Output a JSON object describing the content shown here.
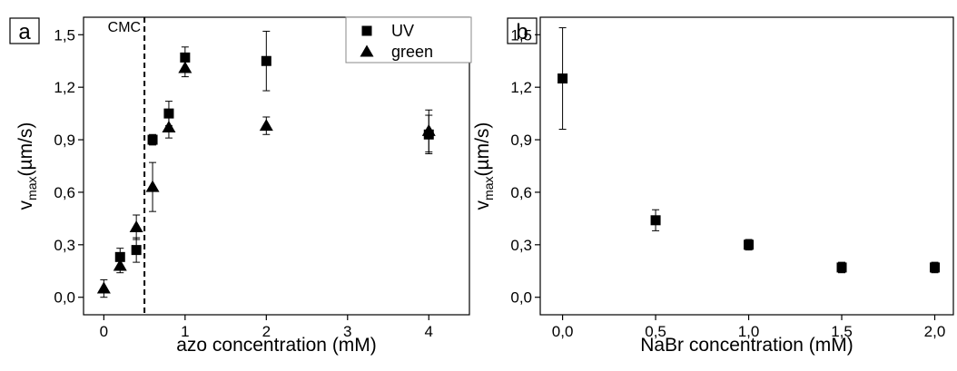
{
  "chart_data": [
    {
      "type": "scatter",
      "panel": "a",
      "xlabel": "azo concentration (mM)",
      "ylabel_main": "v",
      "ylabel_sub": "max",
      "ylabel_rest": "(µm/s)",
      "xlim": [
        -0.25,
        4.5
      ],
      "ylim": [
        -0.1,
        1.6
      ],
      "xticks": [
        {
          "v": 0,
          "label": "0"
        },
        {
          "v": 1,
          "label": "1"
        },
        {
          "v": 2,
          "label": "2"
        },
        {
          "v": 3,
          "label": "3"
        },
        {
          "v": 4,
          "label": "4"
        }
      ],
      "yticks": [
        {
          "v": 0,
          "label": "0,0"
        },
        {
          "v": 0.3,
          "label": "0,3"
        },
        {
          "v": 0.6,
          "label": "0,6"
        },
        {
          "v": 0.9,
          "label": "0,9"
        },
        {
          "v": 1.2,
          "label": "1,2"
        },
        {
          "v": 1.5,
          "label": "1,5"
        }
      ],
      "vline": {
        "x": 0.5,
        "label": "CMC"
      },
      "legend": {
        "placement": "top-right"
      },
      "series": [
        {
          "name": "UV",
          "marker": "square",
          "points": [
            {
              "x": 0.2,
              "y": 0.23,
              "err": 0.05
            },
            {
              "x": 0.4,
              "y": 0.27,
              "err": 0.07
            },
            {
              "x": 0.6,
              "y": 0.9,
              "err": 0.03
            },
            {
              "x": 0.8,
              "y": 1.05,
              "err": 0.07
            },
            {
              "x": 1.0,
              "y": 1.37,
              "err": 0.06
            },
            {
              "x": 2.0,
              "y": 1.35,
              "err": 0.17
            },
            {
              "x": 4.0,
              "y": 0.93,
              "err": 0.11
            }
          ]
        },
        {
          "name": "green",
          "marker": "triangle",
          "points": [
            {
              "x": 0.0,
              "y": 0.05,
              "err": 0.05
            },
            {
              "x": 0.2,
              "y": 0.18,
              "err": 0.04
            },
            {
              "x": 0.4,
              "y": 0.4,
              "err": 0.07
            },
            {
              "x": 0.6,
              "y": 0.63,
              "err": 0.14
            },
            {
              "x": 0.8,
              "y": 0.97,
              "err": 0.06
            },
            {
              "x": 1.0,
              "y": 1.31,
              "err": 0.05
            },
            {
              "x": 2.0,
              "y": 0.98,
              "err": 0.05
            },
            {
              "x": 4.0,
              "y": 0.95,
              "err": 0.12
            }
          ]
        }
      ]
    },
    {
      "type": "scatter",
      "panel": "b",
      "xlabel": "NaBr concentration (mM)",
      "ylabel_main": "v",
      "ylabel_sub": "max",
      "ylabel_rest": "(µm/s)",
      "xlim": [
        -0.12,
        2.1
      ],
      "ylim": [
        -0.1,
        1.6
      ],
      "xticks": [
        {
          "v": 0,
          "label": "0,0"
        },
        {
          "v": 0.5,
          "label": "0,5"
        },
        {
          "v": 1.0,
          "label": "1,0"
        },
        {
          "v": 1.5,
          "label": "1,5"
        },
        {
          "v": 2.0,
          "label": "2,0"
        }
      ],
      "yticks": [
        {
          "v": 0,
          "label": "0,0"
        },
        {
          "v": 0.3,
          "label": "0,3"
        },
        {
          "v": 0.6,
          "label": "0,6"
        },
        {
          "v": 0.9,
          "label": "0,9"
        },
        {
          "v": 1.2,
          "label": "1,2"
        },
        {
          "v": 1.5,
          "label": "1,5"
        }
      ],
      "series": [
        {
          "name": "",
          "marker": "square",
          "points": [
            {
              "x": 0.0,
              "y": 1.25,
              "err": 0.29
            },
            {
              "x": 0.5,
              "y": 0.44,
              "err": 0.06
            },
            {
              "x": 1.0,
              "y": 0.3,
              "err": 0.03
            },
            {
              "x": 1.5,
              "y": 0.17,
              "err": 0.03
            },
            {
              "x": 2.0,
              "y": 0.17,
              "err": 0.03
            }
          ]
        }
      ]
    }
  ]
}
